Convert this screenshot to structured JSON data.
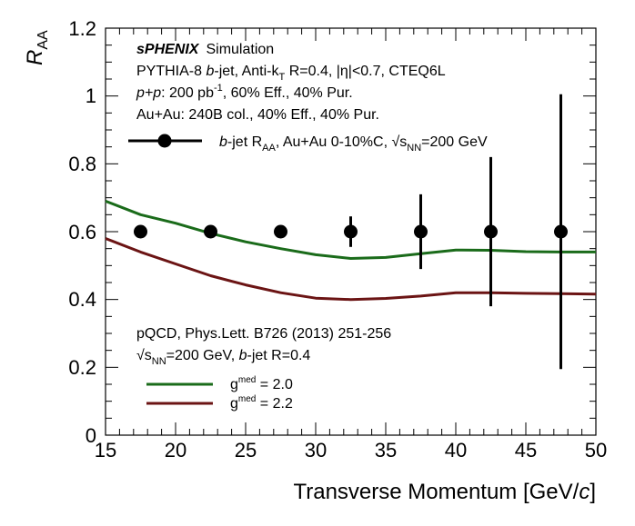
{
  "chart_data": {
    "type": "scatter",
    "title": "",
    "xlabel": "Transverse Momentum [GeV/c]",
    "ylabel": "R_AA",
    "xlim": [
      15,
      50
    ],
    "ylim": [
      0,
      1.2
    ],
    "x_ticks": [
      "15",
      "20",
      "25",
      "30",
      "35",
      "40",
      "45",
      "50"
    ],
    "y_ticks": [
      "0",
      "0.2",
      "0.4",
      "0.6",
      "0.8",
      "1",
      "1.2"
    ],
    "series": [
      {
        "name": "b-jet R_AA, Au+Au 0-10%C, √s_NN=200 GeV",
        "kind": "points_with_errors",
        "color": "#000000",
        "x": [
          17.5,
          22.5,
          27.5,
          32.5,
          37.5,
          42.5,
          47.5
        ],
        "y": [
          0.6,
          0.6,
          0.6,
          0.6,
          0.6,
          0.6,
          0.6
        ],
        "y_err": [
          0.0,
          0.0,
          0.0,
          0.045,
          0.11,
          0.22,
          0.405
        ]
      },
      {
        "name": "g^med = 2.0",
        "kind": "line",
        "color": "#1a6b1a",
        "x": [
          15,
          17.5,
          20,
          22.5,
          25,
          27.5,
          30,
          32.5,
          35,
          37.5,
          40,
          42.5,
          45,
          47.5,
          50
        ],
        "y": [
          0.69,
          0.65,
          0.625,
          0.595,
          0.57,
          0.55,
          0.532,
          0.521,
          0.524,
          0.535,
          0.546,
          0.545,
          0.541,
          0.54,
          0.54
        ]
      },
      {
        "name": "g^med = 2.2",
        "kind": "line",
        "color": "#6b1414",
        "x": [
          15,
          17.5,
          20,
          22.5,
          25,
          27.5,
          30,
          32.5,
          35,
          37.5,
          40,
          42.5,
          45,
          47.5,
          50
        ],
        "y": [
          0.58,
          0.54,
          0.505,
          0.47,
          0.443,
          0.42,
          0.404,
          0.4,
          0.403,
          0.41,
          0.42,
          0.42,
          0.418,
          0.417,
          0.416
        ]
      }
    ]
  },
  "header": {
    "brand": "sPHENIX",
    "brand_suffix": "Simulation",
    "line1_pre": "PYTHIA-8 ",
    "line1_bjet": "b",
    "line1_post": "-jet, Anti-k",
    "line1_sub": "T",
    "line1_tail": " R=0.4, |η|<0.7, CTEQ6L",
    "line2_pp": "p+p",
    "line2_pre": ": 200 pb",
    "line2_sup": "-1",
    "line2_post": ", 60% Eff., 40% Pur.",
    "line3": "Au+Au: 240B col., 40% Eff., 40% Pur."
  },
  "legend_data": {
    "b": "b",
    "jet_raa": "-jet R",
    "raa_sub": "AA",
    "mid": ", Au+Au 0-10%C, ",
    "sqrt": "√",
    "s": "s",
    "s_sub": "NN",
    "tail": "=200 GeV"
  },
  "theory": {
    "ref": "pQCD, Phys.Lett. B726 (2013) 251-256",
    "sqrt": "√",
    "s": "s",
    "s_sub": "NN",
    "energy_post": "=200 GeV, ",
    "bjet_b": "b",
    "bjet_post": "-jet R=0.4",
    "g_base": "g",
    "g_sup": "med",
    "g1_val": " = 2.0",
    "g2_val": " = 2.2"
  },
  "axes": {
    "x_title": "Transverse Momentum [GeV/",
    "x_title_c": "c",
    "x_title_end": "]",
    "y_title_R": "R",
    "y_title_sub": "AA"
  }
}
